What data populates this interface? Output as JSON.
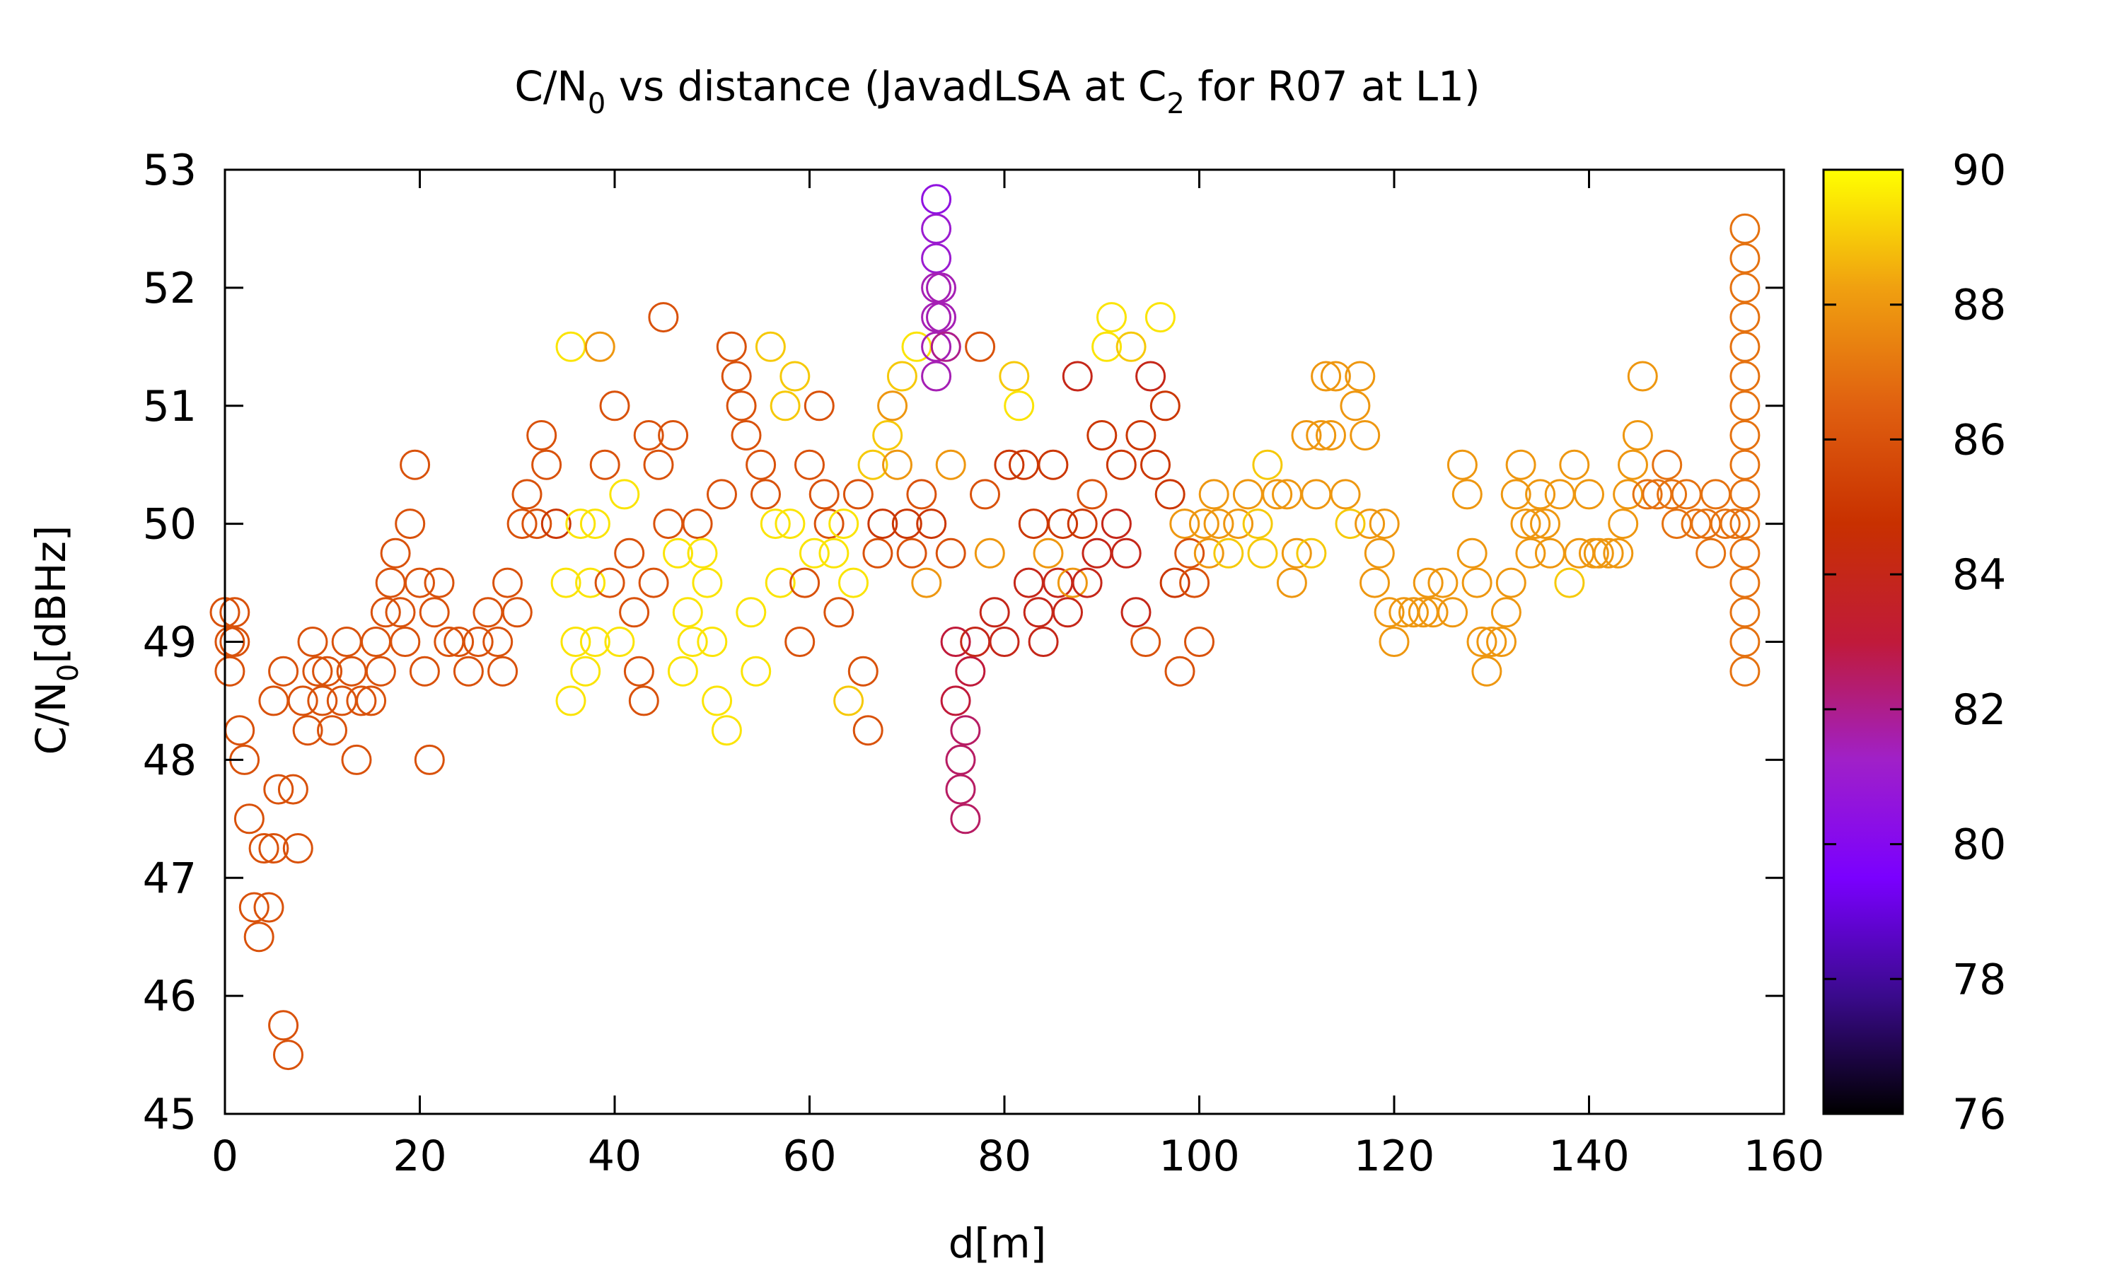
{
  "chart_data": {
    "type": "scatter",
    "title": {
      "prefix": "C/N",
      "sub1": "0",
      "middle": " vs distance (JavadLSA at C",
      "sub2": "2",
      "suffix": " for R07 at L1)"
    },
    "xlabel": "d[m]",
    "ylabel": {
      "prefix": "C/N",
      "sub": "0",
      "suffix": "[dBHz]"
    },
    "xlim": [
      0,
      160
    ],
    "ylim": [
      45,
      53
    ],
    "x_ticks": [
      "0",
      "20",
      "40",
      "60",
      "80",
      "100",
      "120",
      "140",
      "160"
    ],
    "y_ticks": [
      "45",
      "46",
      "47",
      "48",
      "49",
      "50",
      "51",
      "52",
      "53"
    ],
    "colorbar": {
      "range": [
        76,
        90
      ],
      "ticks": [
        "76",
        "78",
        "80",
        "82",
        "84",
        "86",
        "88",
        "90"
      ],
      "palette": [
        "#000000",
        "#3a0a8c",
        "#7a00ff",
        "#a020c8",
        "#c01a3a",
        "#c83000",
        "#e06010",
        "#f0a010",
        "#ffff00"
      ]
    },
    "marker": "open-circle",
    "grid": false,
    "legend": "none",
    "points": [
      [
        0.0,
        49.25,
        86.0
      ],
      [
        0.5,
        49.0,
        86.0
      ],
      [
        1.0,
        49.25,
        86.0
      ],
      [
        0.5,
        48.75,
        86.0
      ],
      [
        1.0,
        49.0,
        86.0
      ],
      [
        1.5,
        48.25,
        86.0
      ],
      [
        2.0,
        48.0,
        86.0
      ],
      [
        2.5,
        47.5,
        86.0
      ],
      [
        3.0,
        46.75,
        86.0
      ],
      [
        3.5,
        46.5,
        86.0
      ],
      [
        4.0,
        47.25,
        86.0
      ],
      [
        4.5,
        46.75,
        86.0
      ],
      [
        5.0,
        47.25,
        86.0
      ],
      [
        5.5,
        47.75,
        86.0
      ],
      [
        6.0,
        45.75,
        86.0
      ],
      [
        6.5,
        45.5,
        86.0
      ],
      [
        7.0,
        47.75,
        86.0
      ],
      [
        7.5,
        47.25,
        86.0
      ],
      [
        5.0,
        48.5,
        86.0
      ],
      [
        6.0,
        48.75,
        86.0
      ],
      [
        8.0,
        48.5,
        86.0
      ],
      [
        8.5,
        48.25,
        86.0
      ],
      [
        9.0,
        49.0,
        86.0
      ],
      [
        9.5,
        48.75,
        86.0
      ],
      [
        10.0,
        48.5,
        86.0
      ],
      [
        10.5,
        48.75,
        86.0
      ],
      [
        11.0,
        48.25,
        86.0
      ],
      [
        12.0,
        48.5,
        86.0
      ],
      [
        12.5,
        49.0,
        86.0
      ],
      [
        13.0,
        48.75,
        86.0
      ],
      [
        13.5,
        48.0,
        86.0
      ],
      [
        14.0,
        48.5,
        86.0
      ],
      [
        15.0,
        48.5,
        86.0
      ],
      [
        15.5,
        49.0,
        86.0
      ],
      [
        16.0,
        48.75,
        86.0
      ],
      [
        16.5,
        49.25,
        86.0
      ],
      [
        17.0,
        49.5,
        86.0
      ],
      [
        17.5,
        49.75,
        86.0
      ],
      [
        18.0,
        49.25,
        86.0
      ],
      [
        18.5,
        49.0,
        86.0
      ],
      [
        19.0,
        50.0,
        86.0
      ],
      [
        19.5,
        50.5,
        86.0
      ],
      [
        20.0,
        49.5,
        86.0
      ],
      [
        20.5,
        48.75,
        86.0
      ],
      [
        21.0,
        48.0,
        86.0
      ],
      [
        21.5,
        49.25,
        86.0
      ],
      [
        22.0,
        49.5,
        86.0
      ],
      [
        23.0,
        49.0,
        86.0
      ],
      [
        24.0,
        49.0,
        86.0
      ],
      [
        25.0,
        48.75,
        86.0
      ],
      [
        26.0,
        49.0,
        86.0
      ],
      [
        27.0,
        49.25,
        86.0
      ],
      [
        28.0,
        49.0,
        86.0
      ],
      [
        28.5,
        48.75,
        86.0
      ],
      [
        29.0,
        49.5,
        86.0
      ],
      [
        30.0,
        49.25,
        86.0
      ],
      [
        30.5,
        50.0,
        86.0
      ],
      [
        31.0,
        50.25,
        86.0
      ],
      [
        32.0,
        50.0,
        86.0
      ],
      [
        32.5,
        50.75,
        86.0
      ],
      [
        33.0,
        50.5,
        86.0
      ],
      [
        34.0,
        50.0,
        85.0
      ],
      [
        35.0,
        49.5,
        89.5
      ],
      [
        35.5,
        51.5,
        89.5
      ],
      [
        35.5,
        48.5,
        89.5
      ],
      [
        36.0,
        49.0,
        89.5
      ],
      [
        36.5,
        50.0,
        89.5
      ],
      [
        37.0,
        48.75,
        89.5
      ],
      [
        37.5,
        49.5,
        89.5
      ],
      [
        38.0,
        50.0,
        89.5
      ],
      [
        38.5,
        51.5,
        88.0
      ],
      [
        38.0,
        49.0,
        89.5
      ],
      [
        39.0,
        50.5,
        86.0
      ],
      [
        39.5,
        49.5,
        86.0
      ],
      [
        40.0,
        51.0,
        86.0
      ],
      [
        40.5,
        49.0,
        89.5
      ],
      [
        41.0,
        50.25,
        89.5
      ],
      [
        41.5,
        49.75,
        86.0
      ],
      [
        42.0,
        49.25,
        86.0
      ],
      [
        42.5,
        48.75,
        86.0
      ],
      [
        43.0,
        48.5,
        86.0
      ],
      [
        43.5,
        50.75,
        86.0
      ],
      [
        44.0,
        49.5,
        86.0
      ],
      [
        44.5,
        50.5,
        86.0
      ],
      [
        45.0,
        51.75,
        86.0
      ],
      [
        45.5,
        50.0,
        86.0
      ],
      [
        46.0,
        50.75,
        86.0
      ],
      [
        46.5,
        49.75,
        89.5
      ],
      [
        47.0,
        48.75,
        89.5
      ],
      [
        47.5,
        49.25,
        89.5
      ],
      [
        48.0,
        49.0,
        89.5
      ],
      [
        48.5,
        50.0,
        86.0
      ],
      [
        49.0,
        49.75,
        89.5
      ],
      [
        49.5,
        49.5,
        89.5
      ],
      [
        50.0,
        49.0,
        89.5
      ],
      [
        50.5,
        48.5,
        89.5
      ],
      [
        51.0,
        50.25,
        86.0
      ],
      [
        51.5,
        48.25,
        89.5
      ],
      [
        52.0,
        51.5,
        86.0
      ],
      [
        52.5,
        51.25,
        86.0
      ],
      [
        53.0,
        51.0,
        86.0
      ],
      [
        53.5,
        50.75,
        86.0
      ],
      [
        54.0,
        49.25,
        89.5
      ],
      [
        54.5,
        48.75,
        89.5
      ],
      [
        55.0,
        50.5,
        86.0
      ],
      [
        55.5,
        50.25,
        86.0
      ],
      [
        56.0,
        51.5,
        89.0
      ],
      [
        56.5,
        50.0,
        89.5
      ],
      [
        57.0,
        49.5,
        89.5
      ],
      [
        57.5,
        51.0,
        89.0
      ],
      [
        58.0,
        50.0,
        89.5
      ],
      [
        58.5,
        51.25,
        89.0
      ],
      [
        59.0,
        49.0,
        86.0
      ],
      [
        59.5,
        49.5,
        86.0
      ],
      [
        60.0,
        50.5,
        86.0
      ],
      [
        60.5,
        49.75,
        89.5
      ],
      [
        61.0,
        51.0,
        86.0
      ],
      [
        61.5,
        50.25,
        86.0
      ],
      [
        62.0,
        50.0,
        86.0
      ],
      [
        62.5,
        49.75,
        89.5
      ],
      [
        63.0,
        49.25,
        86.0
      ],
      [
        63.5,
        50.0,
        89.5
      ],
      [
        64.0,
        48.5,
        89.0
      ],
      [
        64.5,
        49.5,
        89.5
      ],
      [
        65.0,
        50.25,
        86.0
      ],
      [
        65.5,
        48.75,
        86.0
      ],
      [
        66.0,
        48.25,
        86.0
      ],
      [
        66.5,
        50.5,
        89.0
      ],
      [
        67.0,
        49.75,
        86.0
      ],
      [
        67.5,
        50.0,
        85.0
      ],
      [
        68.0,
        50.75,
        89.0
      ],
      [
        68.5,
        51.0,
        88.0
      ],
      [
        69.0,
        50.5,
        88.0
      ],
      [
        69.5,
        51.25,
        89.0
      ],
      [
        70.0,
        50.0,
        85.0
      ],
      [
        70.5,
        49.75,
        86.0
      ],
      [
        71.0,
        51.5,
        89.5
      ],
      [
        71.5,
        50.25,
        86.0
      ],
      [
        72.0,
        49.5,
        88.0
      ],
      [
        72.5,
        50.0,
        85.0
      ],
      [
        73.0,
        52.5,
        81.0
      ],
      [
        73.0,
        52.75,
        80.5
      ],
      [
        73.0,
        52.25,
        81.0
      ],
      [
        73.0,
        52.0,
        81.5
      ],
      [
        73.0,
        51.75,
        81.5
      ],
      [
        73.0,
        51.5,
        81.5
      ],
      [
        73.0,
        51.25,
        81.5
      ],
      [
        73.5,
        52.0,
        81.5
      ],
      [
        73.5,
        51.75,
        81.5
      ],
      [
        74.0,
        51.5,
        82.0
      ],
      [
        74.5,
        50.5,
        88.0
      ],
      [
        74.5,
        49.75,
        86.0
      ],
      [
        75.0,
        49.0,
        83.0
      ],
      [
        75.0,
        48.5,
        83.0
      ],
      [
        75.5,
        48.0,
        82.5
      ],
      [
        75.5,
        47.75,
        82.5
      ],
      [
        76.0,
        47.5,
        82.5
      ],
      [
        76.0,
        48.25,
        82.5
      ],
      [
        76.5,
        48.75,
        83.0
      ],
      [
        77.0,
        49.0,
        84.0
      ],
      [
        77.5,
        51.5,
        86.0
      ],
      [
        78.0,
        50.25,
        86.0
      ],
      [
        78.5,
        49.75,
        88.0
      ],
      [
        79.0,
        49.25,
        84.0
      ],
      [
        80.0,
        49.0,
        84.0
      ],
      [
        80.5,
        50.5,
        85.0
      ],
      [
        81.0,
        51.25,
        89.0
      ],
      [
        81.5,
        51.0,
        89.5
      ],
      [
        82.0,
        50.5,
        85.0
      ],
      [
        82.5,
        49.5,
        84.0
      ],
      [
        83.0,
        50.0,
        85.0
      ],
      [
        83.5,
        49.25,
        84.0
      ],
      [
        84.0,
        49.0,
        84.0
      ],
      [
        84.5,
        49.75,
        88.0
      ],
      [
        85.0,
        50.5,
        85.0
      ],
      [
        85.5,
        49.5,
        84.0
      ],
      [
        86.0,
        50.0,
        85.0
      ],
      [
        86.5,
        49.25,
        84.0
      ],
      [
        87.0,
        49.5,
        88.0
      ],
      [
        87.5,
        51.25,
        84.0
      ],
      [
        88.0,
        50.0,
        85.0
      ],
      [
        88.5,
        49.5,
        84.0
      ],
      [
        89.0,
        50.25,
        86.0
      ],
      [
        89.5,
        49.75,
        84.0
      ],
      [
        90.0,
        50.75,
        85.0
      ],
      [
        90.5,
        51.5,
        89.5
      ],
      [
        91.0,
        51.75,
        89.5
      ],
      [
        91.5,
        50.0,
        84.0
      ],
      [
        92.0,
        50.5,
        85.0
      ],
      [
        92.5,
        49.75,
        84.0
      ],
      [
        93.0,
        51.5,
        89.0
      ],
      [
        93.5,
        49.25,
        84.0
      ],
      [
        94.0,
        50.75,
        85.0
      ],
      [
        94.5,
        49.0,
        86.0
      ],
      [
        95.0,
        51.25,
        84.0
      ],
      [
        95.5,
        50.5,
        85.0
      ],
      [
        96.0,
        51.75,
        89.5
      ],
      [
        96.5,
        51.0,
        85.0
      ],
      [
        97.0,
        50.25,
        85.0
      ],
      [
        97.5,
        49.5,
        85.0
      ],
      [
        98.0,
        48.75,
        86.0
      ],
      [
        98.5,
        50.0,
        88.0
      ],
      [
        99.0,
        49.75,
        86.0
      ],
      [
        99.5,
        49.5,
        86.0
      ],
      [
        100.0,
        49.0,
        86.0
      ],
      [
        100.5,
        50.0,
        88.0
      ],
      [
        101.0,
        49.75,
        88.0
      ],
      [
        101.5,
        50.25,
        88.0
      ],
      [
        102.0,
        50.0,
        88.0
      ],
      [
        103.0,
        49.75,
        89.0
      ],
      [
        104.0,
        50.0,
        88.0
      ],
      [
        105.0,
        50.25,
        88.0
      ],
      [
        106.0,
        50.0,
        89.0
      ],
      [
        106.5,
        49.75,
        89.0
      ],
      [
        107.0,
        50.5,
        89.0
      ],
      [
        108.0,
        50.25,
        88.0
      ],
      [
        109.0,
        50.25,
        88.0
      ],
      [
        109.5,
        49.5,
        88.0
      ],
      [
        110.0,
        49.75,
        88.0
      ],
      [
        111.0,
        50.75,
        88.0
      ],
      [
        111.5,
        49.75,
        89.0
      ],
      [
        112.0,
        50.25,
        88.0
      ],
      [
        112.5,
        50.75,
        88.0
      ],
      [
        113.0,
        51.25,
        88.0
      ],
      [
        113.5,
        50.75,
        88.0
      ],
      [
        114.0,
        51.25,
        88.0
      ],
      [
        115.0,
        50.25,
        88.0
      ],
      [
        115.5,
        50.0,
        89.0
      ],
      [
        116.0,
        51.0,
        88.0
      ],
      [
        116.5,
        51.25,
        88.0
      ],
      [
        117.0,
        50.75,
        88.0
      ],
      [
        117.5,
        50.0,
        88.0
      ],
      [
        118.0,
        49.5,
        88.0
      ],
      [
        118.5,
        49.75,
        88.0
      ],
      [
        119.0,
        50.0,
        88.0
      ],
      [
        119.5,
        49.25,
        88.0
      ],
      [
        120.0,
        49.0,
        88.0
      ],
      [
        121.0,
        49.25,
        88.0
      ],
      [
        122.0,
        49.25,
        88.0
      ],
      [
        123.0,
        49.25,
        88.0
      ],
      [
        123.5,
        49.5,
        88.0
      ],
      [
        124.0,
        49.25,
        88.0
      ],
      [
        125.0,
        49.5,
        88.0
      ],
      [
        126.0,
        49.25,
        88.0
      ],
      [
        127.0,
        50.5,
        88.0
      ],
      [
        127.5,
        50.25,
        88.0
      ],
      [
        128.0,
        49.75,
        88.0
      ],
      [
        128.5,
        49.5,
        88.0
      ],
      [
        129.0,
        49.0,
        88.0
      ],
      [
        129.5,
        48.75,
        88.0
      ],
      [
        130.0,
        49.0,
        88.0
      ],
      [
        131.0,
        49.0,
        88.0
      ],
      [
        131.5,
        49.25,
        88.0
      ],
      [
        132.0,
        49.5,
        88.0
      ],
      [
        132.5,
        50.25,
        88.0
      ],
      [
        133.0,
        50.5,
        88.0
      ],
      [
        133.5,
        50.0,
        88.0
      ],
      [
        134.0,
        49.75,
        88.0
      ],
      [
        134.5,
        50.0,
        88.0
      ],
      [
        135.0,
        50.25,
        88.0
      ],
      [
        135.5,
        50.0,
        88.0
      ],
      [
        136.0,
        49.75,
        88.0
      ],
      [
        137.0,
        50.25,
        88.0
      ],
      [
        138.0,
        49.5,
        89.0
      ],
      [
        138.5,
        50.5,
        88.0
      ],
      [
        139.0,
        49.75,
        88.0
      ],
      [
        140.0,
        50.25,
        88.0
      ],
      [
        140.5,
        49.75,
        88.0
      ],
      [
        141.0,
        49.75,
        88.0
      ],
      [
        142.0,
        49.75,
        88.0
      ],
      [
        143.0,
        49.75,
        88.0
      ],
      [
        143.5,
        50.0,
        88.0
      ],
      [
        144.0,
        50.25,
        88.0
      ],
      [
        144.5,
        50.5,
        88.0
      ],
      [
        145.0,
        50.75,
        88.0
      ],
      [
        145.5,
        51.25,
        88.0
      ],
      [
        146.0,
        50.25,
        87.0
      ],
      [
        147.0,
        50.25,
        87.0
      ],
      [
        148.0,
        50.5,
        87.0
      ],
      [
        148.5,
        50.25,
        87.0
      ],
      [
        149.0,
        50.0,
        87.0
      ],
      [
        150.0,
        50.25,
        87.0
      ],
      [
        151.0,
        50.0,
        87.0
      ],
      [
        152.0,
        50.0,
        87.0
      ],
      [
        152.5,
        49.75,
        87.0
      ],
      [
        153.0,
        50.25,
        87.0
      ],
      [
        154.0,
        50.0,
        87.0
      ],
      [
        155.0,
        50.0,
        87.0
      ],
      [
        156.0,
        50.0,
        87.0
      ],
      [
        156.0,
        52.5,
        87.0
      ],
      [
        156.0,
        52.25,
        87.0
      ],
      [
        156.0,
        52.0,
        87.0
      ],
      [
        156.0,
        51.75,
        87.0
      ],
      [
        156.0,
        51.5,
        87.0
      ],
      [
        156.0,
        51.25,
        87.0
      ],
      [
        156.0,
        51.0,
        87.0
      ],
      [
        156.0,
        50.75,
        87.0
      ],
      [
        156.0,
        50.5,
        87.0
      ],
      [
        156.0,
        50.25,
        87.0
      ],
      [
        156.0,
        49.75,
        87.0
      ],
      [
        156.0,
        49.5,
        87.0
      ],
      [
        156.0,
        49.25,
        87.0
      ],
      [
        156.0,
        49.0,
        87.0
      ],
      [
        156.0,
        48.75,
        87.0
      ]
    ]
  }
}
